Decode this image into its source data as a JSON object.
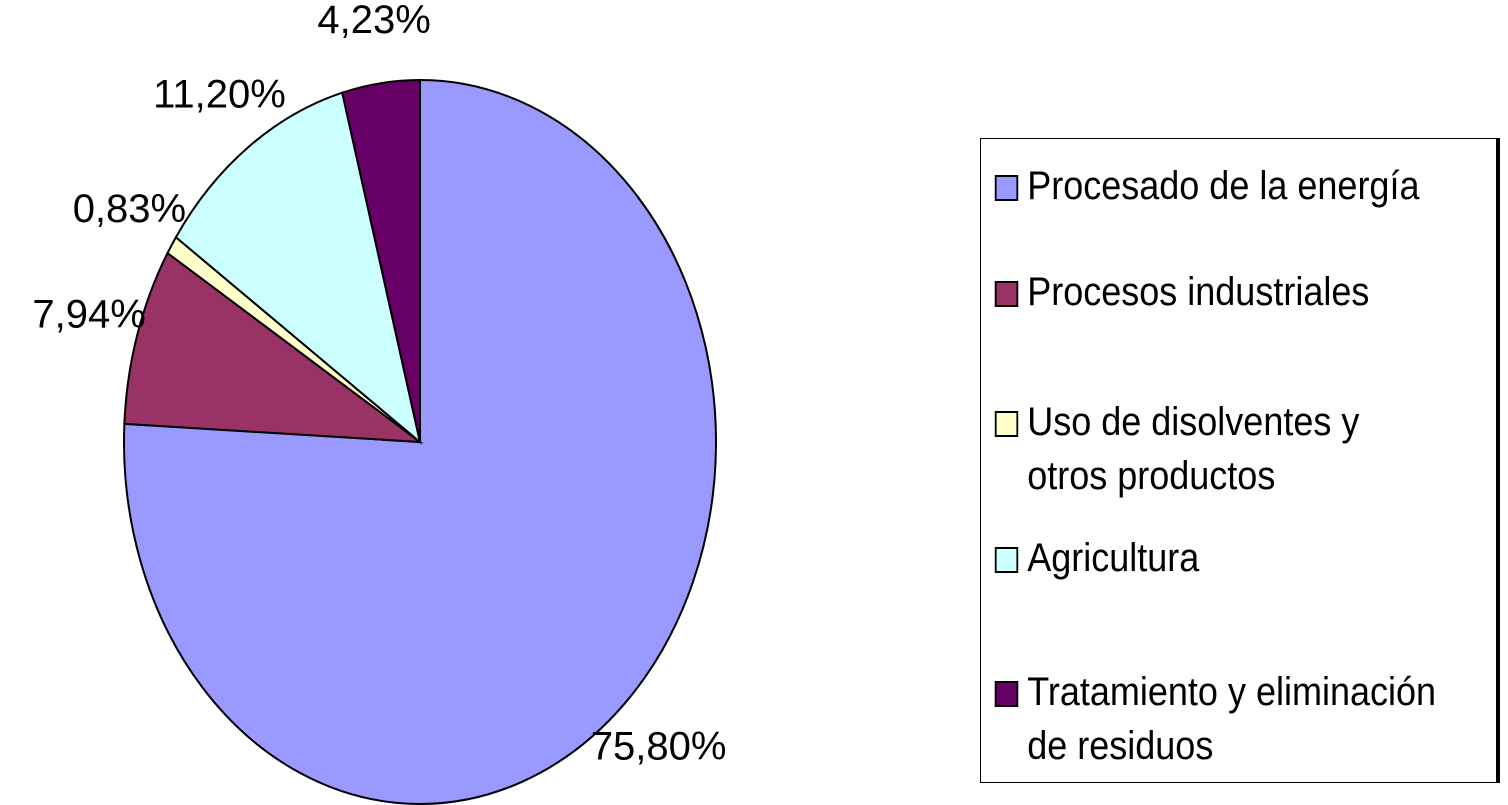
{
  "chart_data": {
    "type": "pie",
    "categories": [
      "Procesado de la energía",
      "Procesos industriales",
      "Uso de disolventes y otros productos",
      "Agricultura",
      "Tratamiento y eliminación de residuos"
    ],
    "values": [
      75.8,
      7.94,
      0.83,
      11.2,
      4.23
    ],
    "value_labels": [
      "75,80%",
      "7,94%",
      "0,83%",
      "11,20%",
      "4,23%"
    ],
    "colors": [
      "#9999ff",
      "#993366",
      "#ffffcc",
      "#ccffff",
      "#660066"
    ],
    "legend": "right"
  }
}
